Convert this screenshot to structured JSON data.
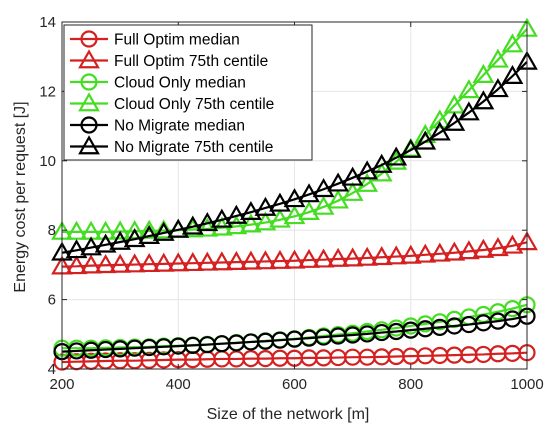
{
  "chart_data": {
    "type": "line",
    "title": "",
    "xlabel": "Size of the network [m]",
    "ylabel": "Energy cost per request [J]",
    "xlim": [
      200,
      1000
    ],
    "ylim": [
      4,
      14
    ],
    "xticks": [
      200,
      400,
      600,
      800,
      1000
    ],
    "yticks": [
      4,
      6,
      8,
      10,
      12,
      14
    ],
    "grid": true,
    "legend_position": "top-left",
    "x": [
      200,
      225,
      250,
      275,
      300,
      325,
      350,
      375,
      400,
      425,
      450,
      475,
      500,
      525,
      550,
      575,
      600,
      625,
      650,
      675,
      700,
      725,
      750,
      775,
      800,
      825,
      850,
      875,
      900,
      925,
      950,
      975,
      1000
    ],
    "series": [
      {
        "name": "Full Optim median",
        "color": "#d42020",
        "marker": "circle",
        "values": [
          4.2,
          4.21,
          4.22,
          4.23,
          4.24,
          4.24,
          4.25,
          4.26,
          4.27,
          4.27,
          4.28,
          4.29,
          4.29,
          4.3,
          4.3,
          4.31,
          4.31,
          4.32,
          4.32,
          4.33,
          4.34,
          4.34,
          4.35,
          4.36,
          4.37,
          4.38,
          4.39,
          4.4,
          4.41,
          4.42,
          4.44,
          4.45,
          4.47
        ]
      },
      {
        "name": "Full Optim 75th centile",
        "color": "#d42020",
        "marker": "triangle",
        "values": [
          6.95,
          6.96,
          6.98,
          6.99,
          7.0,
          7.01,
          7.02,
          7.03,
          7.04,
          7.05,
          7.06,
          7.07,
          7.08,
          7.09,
          7.1,
          7.11,
          7.12,
          7.14,
          7.15,
          7.17,
          7.18,
          7.2,
          7.22,
          7.24,
          7.26,
          7.29,
          7.32,
          7.35,
          7.39,
          7.43,
          7.48,
          7.55,
          7.65
        ]
      },
      {
        "name": "Cloud Only median",
        "color": "#44dd22",
        "marker": "circle",
        "values": [
          4.6,
          4.6,
          4.6,
          4.61,
          4.62,
          4.63,
          4.64,
          4.66,
          4.67,
          4.69,
          4.71,
          4.73,
          4.76,
          4.78,
          4.81,
          4.84,
          4.87,
          4.91,
          4.95,
          4.99,
          5.03,
          5.08,
          5.13,
          5.18,
          5.24,
          5.3,
          5.36,
          5.43,
          5.5,
          5.57,
          5.65,
          5.74,
          5.85
        ]
      },
      {
        "name": "Cloud Only 75th centile",
        "color": "#44dd22",
        "marker": "triangle",
        "values": [
          7.95,
          7.95,
          7.95,
          7.95,
          7.96,
          7.97,
          7.98,
          7.99,
          8.0,
          8.02,
          8.04,
          8.07,
          8.11,
          8.16,
          8.22,
          8.3,
          8.4,
          8.52,
          8.67,
          8.85,
          9.07,
          9.33,
          9.63,
          9.97,
          10.34,
          10.74,
          11.16,
          11.59,
          12.03,
          12.47,
          12.91,
          13.35,
          13.8
        ]
      },
      {
        "name": "No Migrate median",
        "color": "#000000",
        "marker": "circle",
        "values": [
          4.5,
          4.52,
          4.54,
          4.56,
          4.58,
          4.6,
          4.62,
          4.64,
          4.66,
          4.68,
          4.7,
          4.73,
          4.75,
          4.78,
          4.8,
          4.83,
          4.86,
          4.89,
          4.92,
          4.95,
          4.98,
          5.01,
          5.05,
          5.08,
          5.12,
          5.16,
          5.2,
          5.24,
          5.28,
          5.33,
          5.38,
          5.44,
          5.52
        ]
      },
      {
        "name": "No Migrate 75th centile",
        "color": "#000000",
        "marker": "triangle",
        "values": [
          7.35,
          7.42,
          7.5,
          7.58,
          7.66,
          7.74,
          7.83,
          7.92,
          8.01,
          8.1,
          8.2,
          8.3,
          8.41,
          8.52,
          8.64,
          8.76,
          8.89,
          9.03,
          9.18,
          9.34,
          9.51,
          9.69,
          9.88,
          10.09,
          10.31,
          10.55,
          10.81,
          11.09,
          11.39,
          11.71,
          12.06,
          12.44,
          12.85
        ]
      }
    ]
  }
}
